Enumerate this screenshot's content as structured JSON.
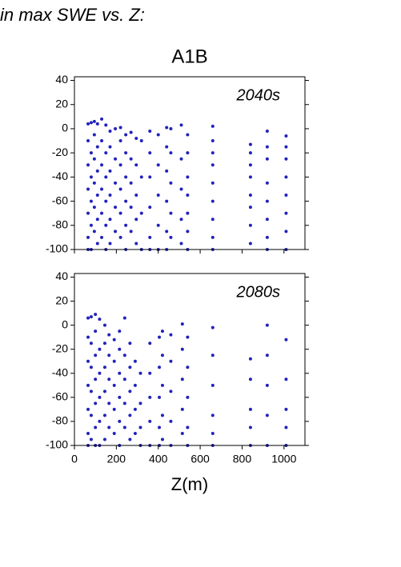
{
  "heading": "in max SWE vs. Z:",
  "chart_data": [
    {
      "type": "scatter",
      "title": "A1B",
      "annotation": "2040s",
      "color": "#2222bb",
      "xlim": [
        0,
        1100
      ],
      "xticks": [
        0,
        200,
        400,
        600,
        800,
        1000
      ],
      "ylim": [
        -100,
        43
      ],
      "yticks": [
        -100,
        -80,
        -60,
        -40,
        -20,
        0,
        20,
        40
      ],
      "grid": false,
      "x": [
        65,
        65,
        65,
        65,
        65,
        65,
        65,
        80,
        80,
        80,
        80,
        80,
        80,
        95,
        95,
        95,
        95,
        95,
        95,
        110,
        110,
        110,
        110,
        110,
        110,
        130,
        130,
        130,
        130,
        130,
        130,
        150,
        150,
        150,
        150,
        150,
        150,
        170,
        170,
        170,
        170,
        170,
        170,
        195,
        195,
        195,
        195,
        195,
        220,
        220,
        220,
        220,
        220,
        220,
        245,
        245,
        245,
        245,
        245,
        245,
        270,
        270,
        270,
        270,
        270,
        295,
        295,
        295,
        295,
        295,
        320,
        320,
        320,
        320,
        360,
        360,
        360,
        360,
        360,
        360,
        400,
        400,
        400,
        400,
        400,
        440,
        440,
        440,
        440,
        440,
        440,
        460,
        460,
        460,
        460,
        460,
        510,
        510,
        510,
        510,
        510,
        540,
        540,
        540,
        540,
        540,
        540,
        540,
        660,
        660,
        660,
        660,
        660,
        660,
        660,
        660,
        660,
        840,
        840,
        840,
        840,
        840,
        840,
        840,
        840,
        920,
        920,
        920,
        920,
        920,
        920,
        920,
        920,
        1010,
        1010,
        1010,
        1010,
        1010,
        1010,
        1010,
        1010
      ],
      "values": [
        4,
        -10,
        -30,
        -50,
        -70,
        -90,
        -100,
        5,
        -20,
        -40,
        -60,
        -80,
        -100,
        6,
        -5,
        -25,
        -45,
        -65,
        -85,
        4,
        -15,
        -35,
        -55,
        -75,
        -95,
        8,
        -10,
        -30,
        -50,
        -70,
        -90,
        3,
        -20,
        -40,
        -60,
        -80,
        -100,
        -2,
        -15,
        -35,
        -55,
        -75,
        -95,
        0,
        -25,
        -45,
        -65,
        -85,
        1,
        -10,
        -30,
        -50,
        -70,
        -90,
        -5,
        -20,
        -40,
        -60,
        -80,
        -100,
        -3,
        -25,
        -45,
        -65,
        -85,
        -8,
        -30,
        -55,
        -75,
        -95,
        -10,
        -40,
        -70,
        -100,
        -2,
        -20,
        -40,
        -65,
        -90,
        -100,
        -5,
        -30,
        -55,
        -80,
        -100,
        1,
        -15,
        -35,
        -60,
        -85,
        -100,
        0,
        -20,
        -45,
        -70,
        -90,
        3,
        -25,
        -50,
        -75,
        -95,
        -5,
        -20,
        -40,
        -55,
        -70,
        -85,
        -100,
        2,
        -10,
        -20,
        -30,
        -45,
        -60,
        -75,
        -90,
        -100,
        -13,
        -20,
        -30,
        -40,
        -55,
        -65,
        -80,
        -95,
        -2,
        -15,
        -25,
        -45,
        -60,
        -75,
        -90,
        -100,
        -6,
        -15,
        -25,
        -40,
        -55,
        -70,
        -85,
        -100
      ]
    },
    {
      "type": "scatter",
      "annotation": "2080s",
      "xlabel": "Z(m)",
      "color": "#2222bb",
      "xlim": [
        0,
        1100
      ],
      "xticks": [
        0,
        200,
        400,
        600,
        800,
        1000
      ],
      "ylim": [
        -100,
        43
      ],
      "yticks": [
        -100,
        -80,
        -60,
        -40,
        -20,
        0,
        20,
        40
      ],
      "grid": false,
      "x": [
        65,
        65,
        65,
        65,
        65,
        65,
        65,
        80,
        80,
        80,
        80,
        80,
        80,
        100,
        100,
        100,
        100,
        100,
        100,
        100,
        120,
        120,
        120,
        120,
        120,
        120,
        145,
        145,
        145,
        145,
        145,
        145,
        165,
        165,
        165,
        165,
        165,
        190,
        190,
        190,
        190,
        190,
        215,
        215,
        215,
        215,
        215,
        215,
        240,
        240,
        240,
        240,
        240,
        265,
        265,
        265,
        265,
        265,
        290,
        290,
        290,
        290,
        315,
        315,
        315,
        315,
        360,
        360,
        360,
        360,
        360,
        405,
        405,
        405,
        405,
        405,
        420,
        420,
        420,
        420,
        420,
        460,
        460,
        460,
        460,
        460,
        515,
        515,
        515,
        515,
        515,
        540,
        540,
        540,
        540,
        540,
        660,
        660,
        660,
        660,
        660,
        660,
        840,
        840,
        840,
        840,
        840,
        920,
        920,
        920,
        920,
        920,
        1010,
        1010,
        1010,
        1010,
        1010
      ],
      "values": [
        6,
        -10,
        -30,
        -50,
        -70,
        -90,
        -100,
        7,
        -15,
        -35,
        -55,
        -75,
        -95,
        9,
        -5,
        -25,
        -45,
        -65,
        -85,
        -100,
        5,
        -20,
        -40,
        -60,
        -80,
        -100,
        0,
        -15,
        -35,
        -55,
        -75,
        -95,
        -8,
        -25,
        -45,
        -65,
        -85,
        -12,
        -30,
        -50,
        -70,
        -90,
        -5,
        -20,
        -40,
        -60,
        -80,
        -100,
        6,
        -25,
        -45,
        -65,
        -85,
        -15,
        -35,
        -55,
        -75,
        -95,
        -30,
        -50,
        -70,
        -90,
        -40,
        -65,
        -85,
        -100,
        -15,
        -40,
        -60,
        -80,
        -100,
        -10,
        -35,
        -60,
        -85,
        -100,
        -5,
        -25,
        -50,
        -75,
        -95,
        -8,
        -30,
        -55,
        -80,
        -100,
        1,
        -20,
        -45,
        -70,
        -90,
        -10,
        -35,
        -60,
        -85,
        -100,
        -2,
        -25,
        -50,
        -75,
        -90,
        -100,
        -28,
        -45,
        -70,
        -85,
        -100,
        0,
        -25,
        -50,
        -75,
        -100,
        -12,
        -45,
        -70,
        -85,
        -100
      ]
    }
  ]
}
